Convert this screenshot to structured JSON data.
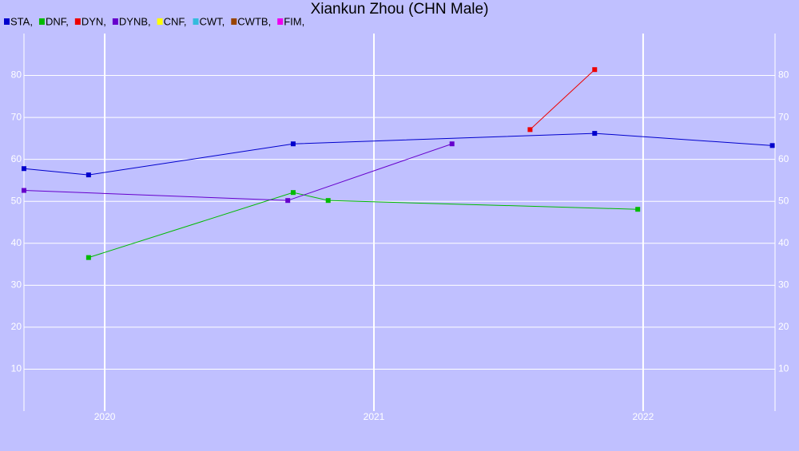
{
  "chart_data": {
    "type": "line",
    "title": "Xiankun Zhou (CHN Male)",
    "xlim": [
      2019.7,
      2022.49
    ],
    "xticks": [
      2020,
      2021,
      2022
    ],
    "ylim": [
      0,
      90
    ],
    "yticks": [
      10,
      20,
      30,
      40,
      50,
      60,
      70,
      80
    ],
    "grid": true,
    "legend": "top-left",
    "series": [
      {
        "name": "STA,",
        "color": "#0000cc",
        "x": [
          2019.7,
          2019.94,
          2020.7,
          2021.82,
          2022.48
        ],
        "values": [
          57.8,
          56.3,
          63.7,
          66.2,
          63.3
        ]
      },
      {
        "name": "DNF,",
        "color": "#00bb00",
        "x": [
          2019.94,
          2020.7,
          2020.83,
          2021.98
        ],
        "values": [
          36.6,
          52.1,
          50.2,
          48.1
        ]
      },
      {
        "name": "DYN,",
        "color": "#ee0000",
        "x": [
          2021.58,
          2021.82
        ],
        "values": [
          67.1,
          81.4
        ]
      },
      {
        "name": "DYNB,",
        "color": "#6600cc",
        "x": [
          2019.7,
          2020.68,
          2021.29
        ],
        "values": [
          52.6,
          50.2,
          63.7
        ]
      },
      {
        "name": "CNF,",
        "color": "#ffff00",
        "x": [],
        "values": []
      },
      {
        "name": "CWT,",
        "color": "#33bbdd",
        "x": [],
        "values": []
      },
      {
        "name": "CWTB,",
        "color": "#994400",
        "x": [],
        "values": []
      },
      {
        "name": "FIM,",
        "color": "#ee00ee",
        "x": [],
        "values": []
      }
    ]
  }
}
